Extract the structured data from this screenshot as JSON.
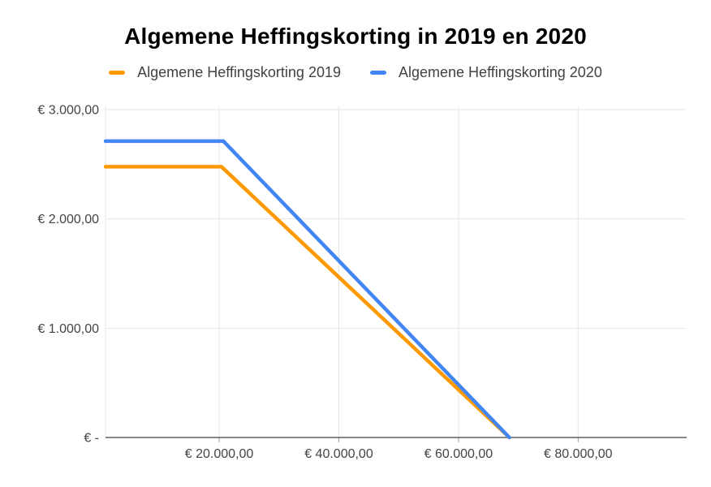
{
  "colors": {
    "background": "#ffffff",
    "title_text": "#000000",
    "legend_text": "#424242",
    "tick_label_text": "#444444",
    "gridline": "#e6e6e6",
    "axis_line": "#616161",
    "tick_mark": "#9e9e9e",
    "series_2019": "#FF9900",
    "series_2020": "#4285F4"
  },
  "chart_data": {
    "type": "line",
    "title": "Algemene Heffingskorting in 2019 en 2020",
    "legend_position": "top",
    "grid": true,
    "x_axis": {
      "min": 1000,
      "max": 98000,
      "ticks": [
        {
          "value": 20000,
          "label": "€ 20.000,00"
        },
        {
          "value": 40000,
          "label": "€ 40.000,00"
        },
        {
          "value": 60000,
          "label": "€ 60.000,00"
        },
        {
          "value": 80000,
          "label": "€ 80.000,00"
        }
      ]
    },
    "y_axis": {
      "min": 0,
      "max": 3000,
      "ticks": [
        {
          "value": 3000,
          "label": "€ 3.000,00"
        },
        {
          "value": 2000,
          "label": "€ 2.000,00"
        },
        {
          "value": 1000,
          "label": "€ 1.000,00"
        },
        {
          "value": 0,
          "label": "€ -"
        }
      ]
    },
    "series": [
      {
        "name": "Algemene Heffingskorting 2019",
        "color": "#FF9900",
        "max_value": 2477,
        "phase_out_start_income": 20384,
        "zero_income": 68507,
        "points": [
          [
            1000,
            2477
          ],
          [
            20384,
            2477
          ],
          [
            68507,
            0
          ]
        ]
      },
      {
        "name": "Algemene Heffingskorting 2020",
        "color": "#4285F4",
        "max_value": 2711,
        "phase_out_start_income": 20711,
        "zero_income": 68507,
        "points": [
          [
            1000,
            2711
          ],
          [
            20711,
            2711
          ],
          [
            68507,
            0
          ]
        ]
      }
    ]
  }
}
